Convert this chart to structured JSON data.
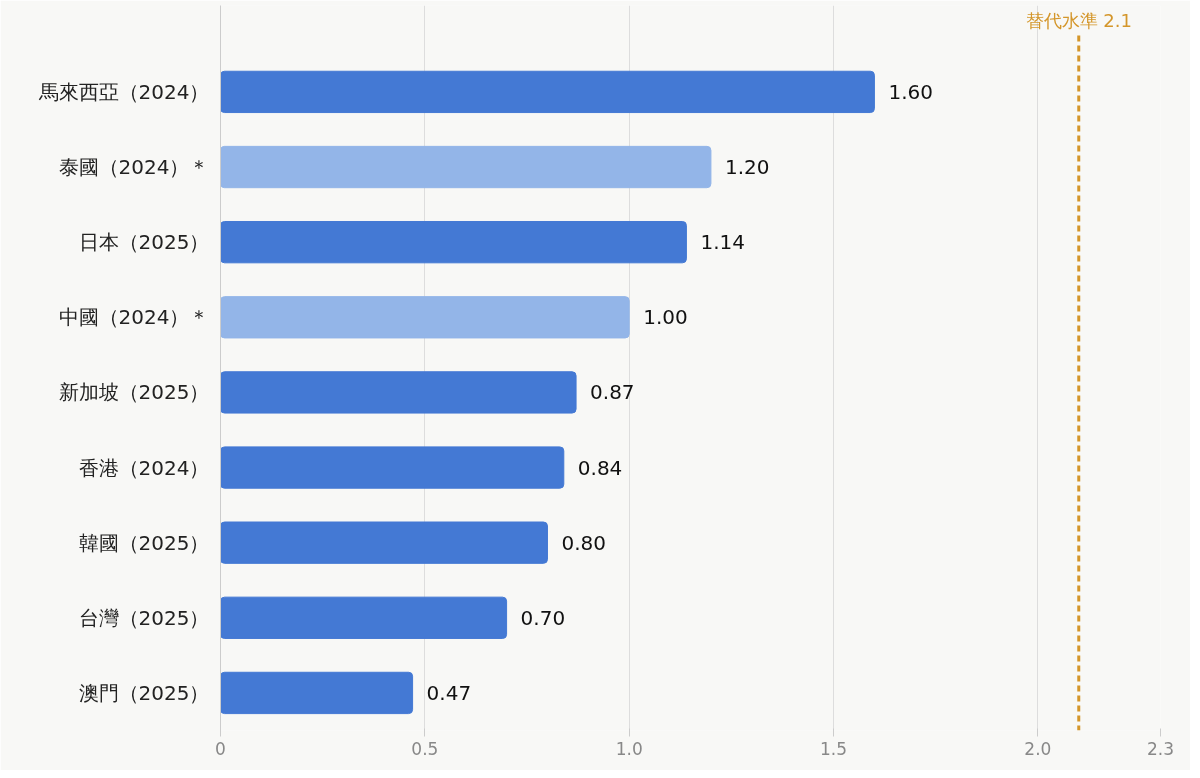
{
  "chart_data": {
    "type": "bar",
    "orientation": "horizontal",
    "categories": [
      "馬來西亞（2024）",
      "泰國（2024）＊",
      "日本（2025）",
      "中國（2024）＊",
      "新加坡（2025）",
      "香港（2024）",
      "韓國（2025）",
      "台灣（2025）",
      "澳門（2025）"
    ],
    "values": [
      1.6,
      1.2,
      1.14,
      1.0,
      0.87,
      0.84,
      0.8,
      0.7,
      0.47
    ],
    "value_labels": [
      "1.60",
      "1.20",
      "1.14",
      "1.00",
      "0.87",
      "0.84",
      "0.80",
      "0.70",
      "0.47"
    ],
    "colors": [
      "#4479d4",
      "#93b5e8",
      "#4479d4",
      "#93b5e8",
      "#4479d4",
      "#4479d4",
      "#4479d4",
      "#4479d4",
      "#4479d4"
    ],
    "xlim": [
      0,
      2.3
    ],
    "xticks": [
      0,
      0.5,
      {
        "value": 1.0,
        "label": "1.0"
      },
      1.5,
      {
        "value": 2.0,
        "label": "2.0"
      },
      2.3
    ],
    "grid": "x",
    "ref_lines": [
      {
        "axis": "x",
        "value": 2.1,
        "label": "替代水準 2.1",
        "color": "#d4962a",
        "line_style": "dashed"
      }
    ]
  }
}
